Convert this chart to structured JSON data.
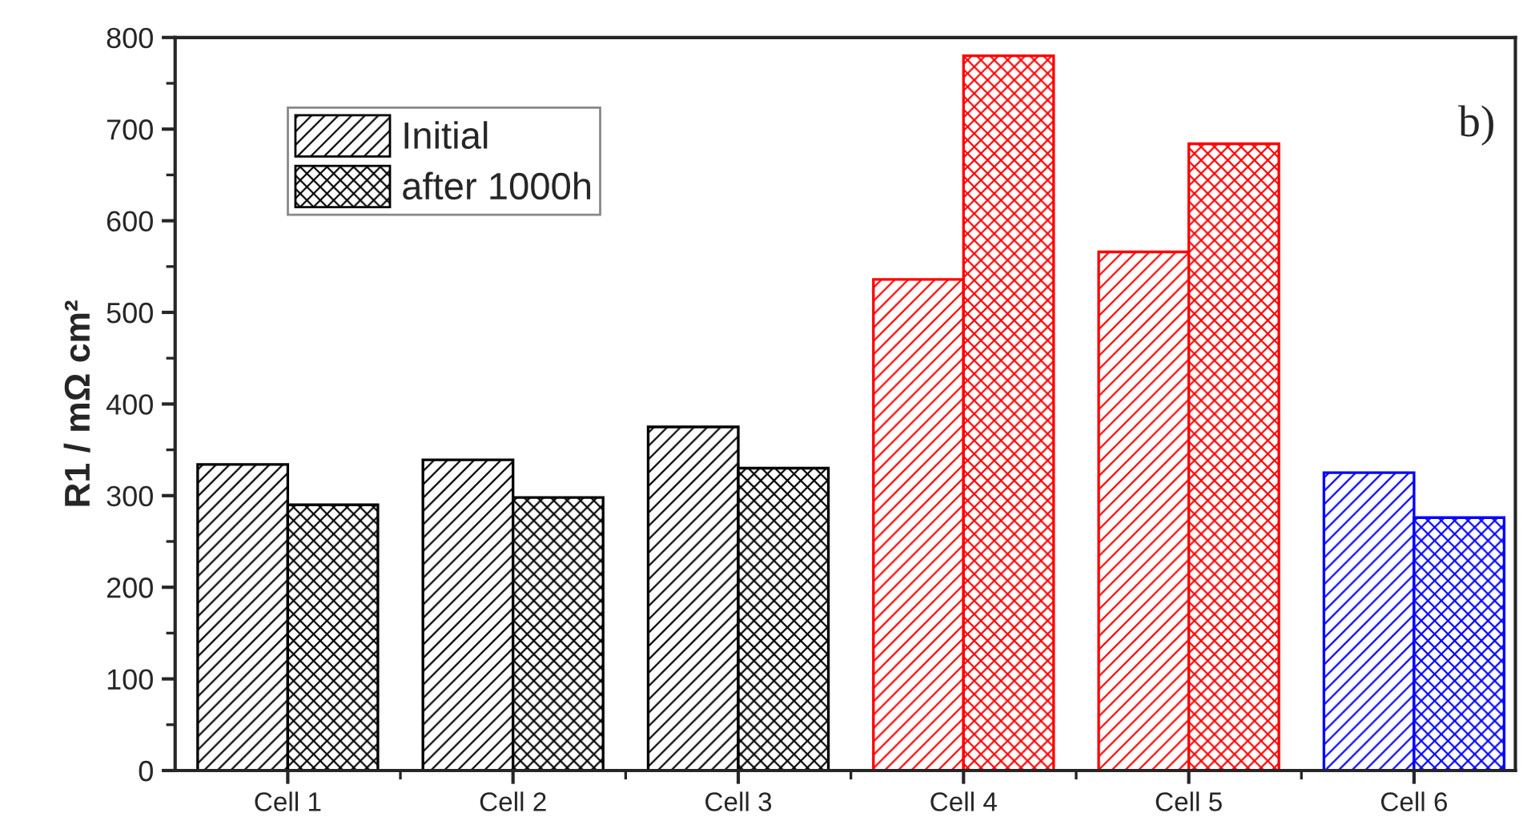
{
  "chart_data": {
    "type": "bar",
    "ylabel": "R1 / mΩ cm²",
    "categories": [
      "Cell 1",
      "Cell 2",
      "Cell 3",
      "Cell 4",
      "Cell 5",
      "Cell 6"
    ],
    "series": [
      {
        "name": "Initial",
        "color": "#000000",
        "colors": [
          "#000000",
          "#000000",
          "#000000",
          "#ff0000",
          "#ff0000",
          "#0000ff"
        ],
        "values": [
          334,
          339,
          375,
          536,
          566,
          325
        ]
      },
      {
        "name": "after 1000h",
        "color": "#000000",
        "colors": [
          "#000000",
          "#000000",
          "#000000",
          "#ff0000",
          "#ff0000",
          "#0000ff"
        ],
        "values": [
          290,
          298,
          330,
          780,
          684,
          276
        ]
      }
    ],
    "ylim": [
      0,
      800
    ],
    "yticks": [
      0,
      100,
      200,
      300,
      400,
      500,
      600,
      700,
      800
    ],
    "annotations": [
      "b)"
    ],
    "legend": "top left",
    "grid": false
  }
}
